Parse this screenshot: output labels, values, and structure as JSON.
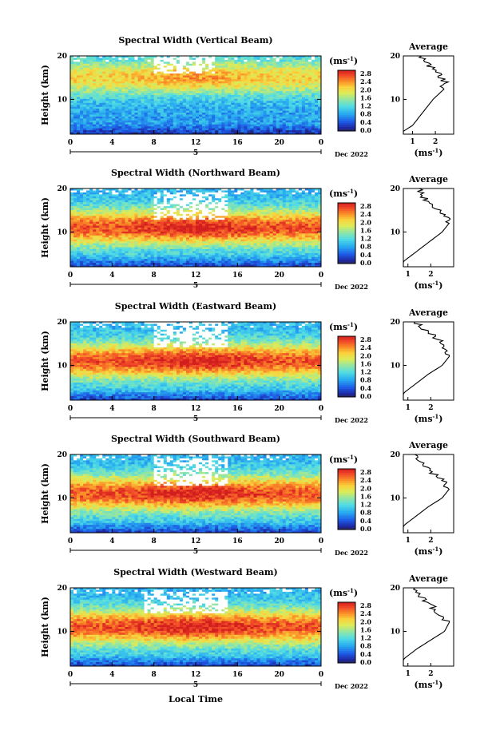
{
  "page": {
    "x_axis_label": "Local Time",
    "y_axis_label": "Height (km)",
    "date_label": "Dec 2022",
    "day_label": "5",
    "colorbar_unit": "(ms",
    "colorbar_unit_exp": "-1",
    "colorbar_unit_close": ")",
    "avg_title": "Average",
    "avg_unit": "(ms",
    "avg_unit_exp": "-1",
    "avg_unit_close": ")"
  },
  "chart_data": [
    {
      "type": "heatmap",
      "title": "Spectral Width (Vertical Beam)",
      "xlabel": "",
      "ylabel": "Height (km)",
      "xlim": [
        0,
        24
      ],
      "ylim": [
        2,
        20
      ],
      "x_ticks": [
        "0",
        "4",
        "8",
        "12",
        "16",
        "20",
        "0"
      ],
      "y_ticks": [
        "20",
        "10"
      ],
      "colorbar": {
        "label": "(ms-1)",
        "range": [
          0,
          3.0
        ],
        "ticks": [
          "2.8",
          "2.4",
          "2.0",
          "1.6",
          "1.2",
          "0.8",
          "0.4",
          "0.0"
        ]
      },
      "profile": {
        "title": "Average",
        "xlabel": "(ms-1)",
        "x_ticks": [
          "1",
          "2"
        ],
        "y_ticks": [
          "20",
          "10"
        ],
        "height_km": [
          2,
          4,
          6,
          8,
          10,
          12,
          14,
          16,
          18,
          20
        ],
        "width_ms": [
          0.4,
          1.0,
          1.3,
          1.6,
          1.9,
          2.3,
          2.4,
          2.1,
          1.7,
          1.4
        ]
      },
      "profile_xlim": [
        0.6,
        2.8
      ],
      "field": {
        "peak_height_km": 15,
        "peak": 2.1,
        "base": 0.8,
        "gap_hours": [
          8,
          14
        ],
        "gap_heights": [
          16,
          20
        ]
      }
    },
    {
      "type": "heatmap",
      "title": "Spectral Width (Northward Beam)",
      "xlabel": "",
      "ylabel": "Height (km)",
      "xlim": [
        0,
        24
      ],
      "ylim": [
        2,
        20
      ],
      "x_ticks": [
        "0",
        "4",
        "8",
        "12",
        "16",
        "20",
        "0"
      ],
      "y_ticks": [
        "20",
        "10"
      ],
      "colorbar": {
        "label": "(ms-1)",
        "range": [
          0,
          3.0
        ],
        "ticks": [
          "2.8",
          "2.4",
          "2.0",
          "1.6",
          "1.2",
          "0.8",
          "0.4",
          "0.0"
        ]
      },
      "profile": {
        "title": "Average",
        "xlabel": "(ms-1)",
        "x_ticks": [
          "1",
          "2"
        ],
        "y_ticks": [
          "20",
          "10"
        ],
        "height_km": [
          2,
          4,
          6,
          8,
          10,
          12,
          14,
          16,
          18,
          20
        ],
        "width_ms": [
          0.5,
          1.0,
          1.5,
          2.0,
          2.5,
          2.8,
          2.6,
          2.1,
          1.7,
          1.5
        ]
      },
      "profile_xlim": [
        0.8,
        3.0
      ],
      "field": {
        "peak_height_km": 11,
        "peak": 2.7,
        "base": 0.9,
        "gap_hours": [
          8,
          15
        ],
        "gap_heights": [
          13,
          19
        ]
      }
    },
    {
      "type": "heatmap",
      "title": "Spectral Width (Eastward Beam)",
      "xlabel": "",
      "ylabel": "Height (km)",
      "xlim": [
        0,
        24
      ],
      "ylim": [
        2,
        20
      ],
      "x_ticks": [
        "0",
        "4",
        "8",
        "12",
        "16",
        "20",
        "0"
      ],
      "y_ticks": [
        "20",
        "10"
      ],
      "colorbar": {
        "label": "(ms-1)",
        "range": [
          0,
          3.0
        ],
        "ticks": [
          "2.8",
          "2.4",
          "2.0",
          "1.6",
          "1.2",
          "0.8",
          "0.4",
          "0.0"
        ]
      },
      "profile": {
        "title": "Average",
        "xlabel": "(ms-1)",
        "x_ticks": [
          "1",
          "2"
        ],
        "y_ticks": [
          "20",
          "10"
        ],
        "height_km": [
          2,
          4,
          6,
          8,
          10,
          12,
          14,
          16,
          18,
          20
        ],
        "width_ms": [
          0.5,
          0.9,
          1.4,
          1.9,
          2.5,
          2.8,
          2.6,
          2.3,
          1.8,
          1.3
        ]
      },
      "profile_xlim": [
        0.8,
        3.0
      ],
      "field": {
        "peak_height_km": 11,
        "peak": 2.7,
        "base": 0.9,
        "gap_hours": [
          8,
          15
        ],
        "gap_heights": [
          14,
          20
        ]
      }
    },
    {
      "type": "heatmap",
      "title": "Spectral Width (Southward Beam)",
      "xlabel": "",
      "ylabel": "Height (km)",
      "xlim": [
        0,
        24
      ],
      "ylim": [
        2,
        20
      ],
      "x_ticks": [
        "0",
        "4",
        "8",
        "12",
        "16",
        "20",
        "0"
      ],
      "y_ticks": [
        "20",
        "10"
      ],
      "colorbar": {
        "label": "(ms-1)",
        "range": [
          0,
          3.0
        ],
        "ticks": [
          "2.8",
          "2.4",
          "2.0",
          "1.6",
          "1.2",
          "0.8",
          "0.4",
          "0.0"
        ]
      },
      "profile": {
        "title": "Average",
        "xlabel": "(ms-1)",
        "x_ticks": [
          "1",
          "2"
        ],
        "y_ticks": [
          "20",
          "10"
        ],
        "height_km": [
          2,
          4,
          6,
          8,
          10,
          12,
          14,
          16,
          18,
          20
        ],
        "width_ms": [
          0.5,
          0.9,
          1.4,
          1.9,
          2.5,
          2.8,
          2.5,
          2.0,
          1.6,
          1.3
        ]
      },
      "profile_xlim": [
        0.8,
        3.0
      ],
      "field": {
        "peak_height_km": 11,
        "peak": 2.7,
        "base": 0.9,
        "gap_hours": [
          8,
          15
        ],
        "gap_heights": [
          13,
          19
        ]
      }
    },
    {
      "type": "heatmap",
      "title": "Spectral Width (Westward Beam)",
      "xlabel": "Local Time",
      "ylabel": "Height (km)",
      "xlim": [
        0,
        24
      ],
      "ylim": [
        2,
        20
      ],
      "x_ticks": [
        "0",
        "4",
        "8",
        "12",
        "16",
        "20",
        "0"
      ],
      "y_ticks": [
        "20",
        "10"
      ],
      "colorbar": {
        "label": "(ms-1)",
        "range": [
          0,
          3.0
        ],
        "ticks": [
          "2.8",
          "2.4",
          "2.0",
          "1.6",
          "1.2",
          "0.8",
          "0.4",
          "0.0"
        ]
      },
      "profile": {
        "title": "Average",
        "xlabel": "(ms-1)",
        "x_ticks": [
          "1",
          "2"
        ],
        "y_ticks": [
          "20",
          "10"
        ],
        "height_km": [
          2,
          4,
          6,
          8,
          10,
          12,
          14,
          16,
          18,
          20
        ],
        "width_ms": [
          0.5,
          0.9,
          1.4,
          2.0,
          2.6,
          2.8,
          2.4,
          2.0,
          1.6,
          1.3
        ]
      },
      "profile_xlim": [
        0.8,
        3.0
      ],
      "field": {
        "peak_height_km": 11,
        "peak": 2.7,
        "base": 0.9,
        "gap_hours": [
          7,
          15
        ],
        "gap_heights": [
          14,
          19
        ]
      }
    }
  ]
}
